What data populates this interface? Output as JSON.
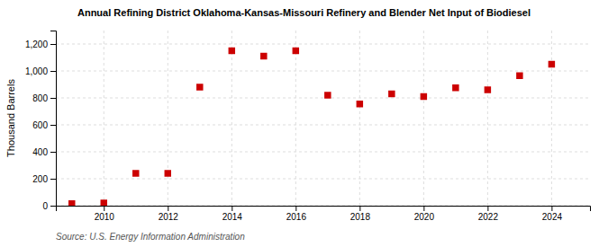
{
  "chart_data": {
    "type": "scatter",
    "title": "Annual Refining District Oklahoma-Kansas-Missouri Refinery and Blender Net Input of Biodiesel",
    "ylabel": "Thousand Barrels",
    "source": "Source: U.S. Energy Information Administration",
    "x": [
      2009,
      2010,
      2011,
      2012,
      2013,
      2014,
      2015,
      2016,
      2017,
      2018,
      2019,
      2020,
      2021,
      2022,
      2023,
      2024
    ],
    "values": [
      15,
      20,
      240,
      240,
      880,
      1150,
      1110,
      1150,
      820,
      755,
      830,
      810,
      875,
      860,
      965,
      1050
    ],
    "color": "#cc0000",
    "marker": "square",
    "xlim": [
      2008.5,
      2025.2
    ],
    "ylim": [
      0,
      1300
    ],
    "xticks": [
      2010,
      2012,
      2014,
      2016,
      2018,
      2020,
      2022,
      2024
    ],
    "yticks": [
      0,
      200,
      400,
      600,
      800,
      {
        "value": 1000,
        "label": "1,000"
      },
      {
        "value": 1200,
        "label": "1,200"
      }
    ],
    "grid": true
  }
}
